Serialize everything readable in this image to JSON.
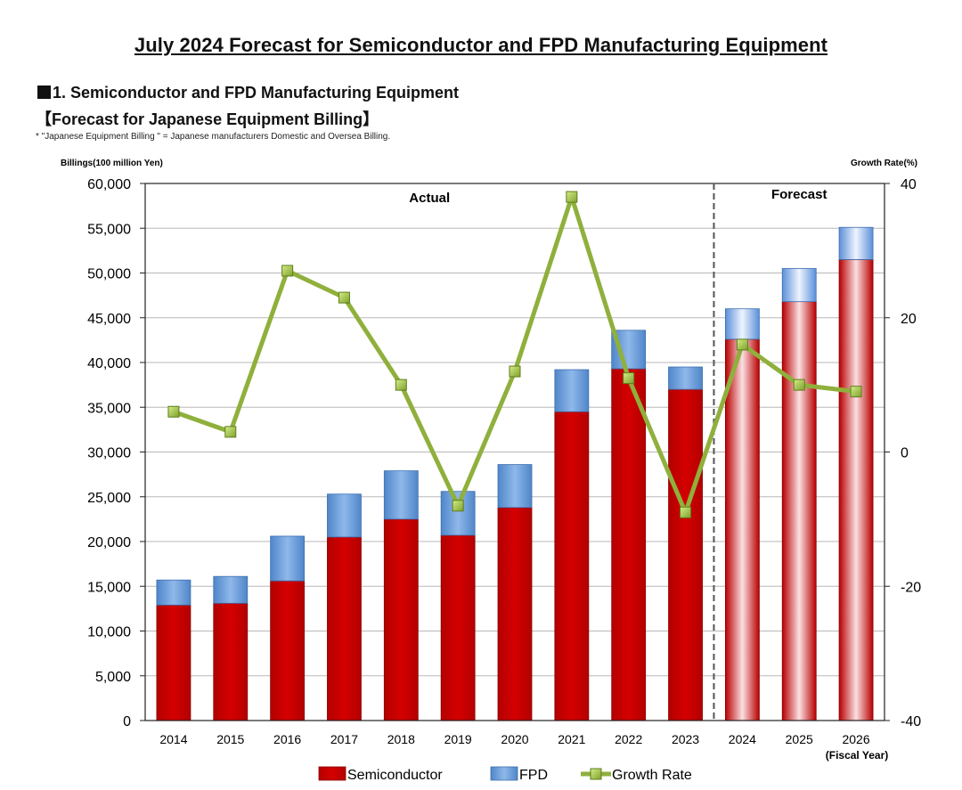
{
  "header": {
    "title": "July 2024 Forecast for Semiconductor and FPD Manufacturing Equipment",
    "section_heading": "1. Semiconductor and FPD Manufacturing Equipment",
    "sub_heading": "【Forecast for Japanese Equipment Billing】",
    "footnote": "* \"Japanese Equipment Billing \" = Japanese manufacturers Domestic and Oversea Billing."
  },
  "chart_data": {
    "type": "bar",
    "stacked": true,
    "categories": [
      "2014",
      "2015",
      "2016",
      "2017",
      "2018",
      "2019",
      "2020",
      "2021",
      "2022",
      "2023",
      "2024",
      "2025",
      "2026"
    ],
    "x_suffix_label": "(Fiscal Year)",
    "ylabel": "Billings(100 million Yen)",
    "y2label": "Growth Rate(%)",
    "ylim": [
      0,
      60000
    ],
    "y2lim": [
      -40,
      40
    ],
    "y_ticks": [
      "0",
      "5,000",
      "10,000",
      "15,000",
      "20,000",
      "25,000",
      "30,000",
      "35,000",
      "40,000",
      "45,000",
      "50,000",
      "55,000",
      "60,000"
    ],
    "y2_ticks": [
      "-40",
      "-20",
      "0",
      "20",
      "40"
    ],
    "grid": true,
    "annotations": {
      "actual": "Actual",
      "forecast": "Forecast"
    },
    "forecast_start_index": 10,
    "series": [
      {
        "name": "Semiconductor",
        "kind": "bar",
        "color": "#c00000",
        "values": [
          12900,
          13100,
          15600,
          20500,
          22500,
          20700,
          23800,
          34500,
          39300,
          37000,
          42600,
          46800,
          51500
        ]
      },
      {
        "name": "FPD",
        "kind": "bar",
        "color": "#5b9bd5",
        "values": [
          2800,
          3000,
          5000,
          4800,
          5400,
          4900,
          4800,
          4700,
          4300,
          2500,
          3400,
          3700,
          3600
        ]
      },
      {
        "name": "Growth Rate",
        "kind": "line",
        "axis": "right",
        "color": "#8fb03c",
        "values": [
          6,
          3,
          27,
          23,
          10,
          -8,
          12,
          38,
          11,
          -9,
          16,
          10,
          9
        ]
      }
    ],
    "legend": {
      "position": "bottom",
      "items": [
        "Semiconductor",
        "FPD",
        "Growth Rate"
      ]
    }
  }
}
